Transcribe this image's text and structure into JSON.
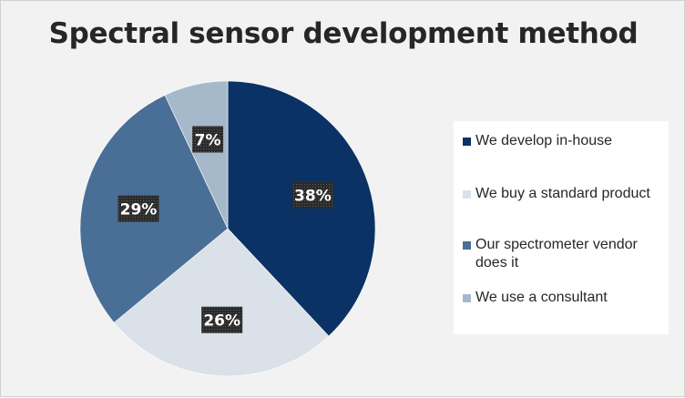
{
  "chart_data": {
    "type": "pie",
    "title": "Spectral sensor development method",
    "categories": [
      "We develop in-house",
      "We buy a standard product",
      "Our spectrometer vendor does it",
      "We use a consultant"
    ],
    "values": [
      38,
      26,
      29,
      7
    ],
    "data_labels": [
      "38%",
      "26%",
      "29%",
      "7%"
    ],
    "colors": [
      "#0b3264",
      "#dae1e8",
      "#4a6f97",
      "#a6b9cb"
    ],
    "legend_position": "right"
  }
}
